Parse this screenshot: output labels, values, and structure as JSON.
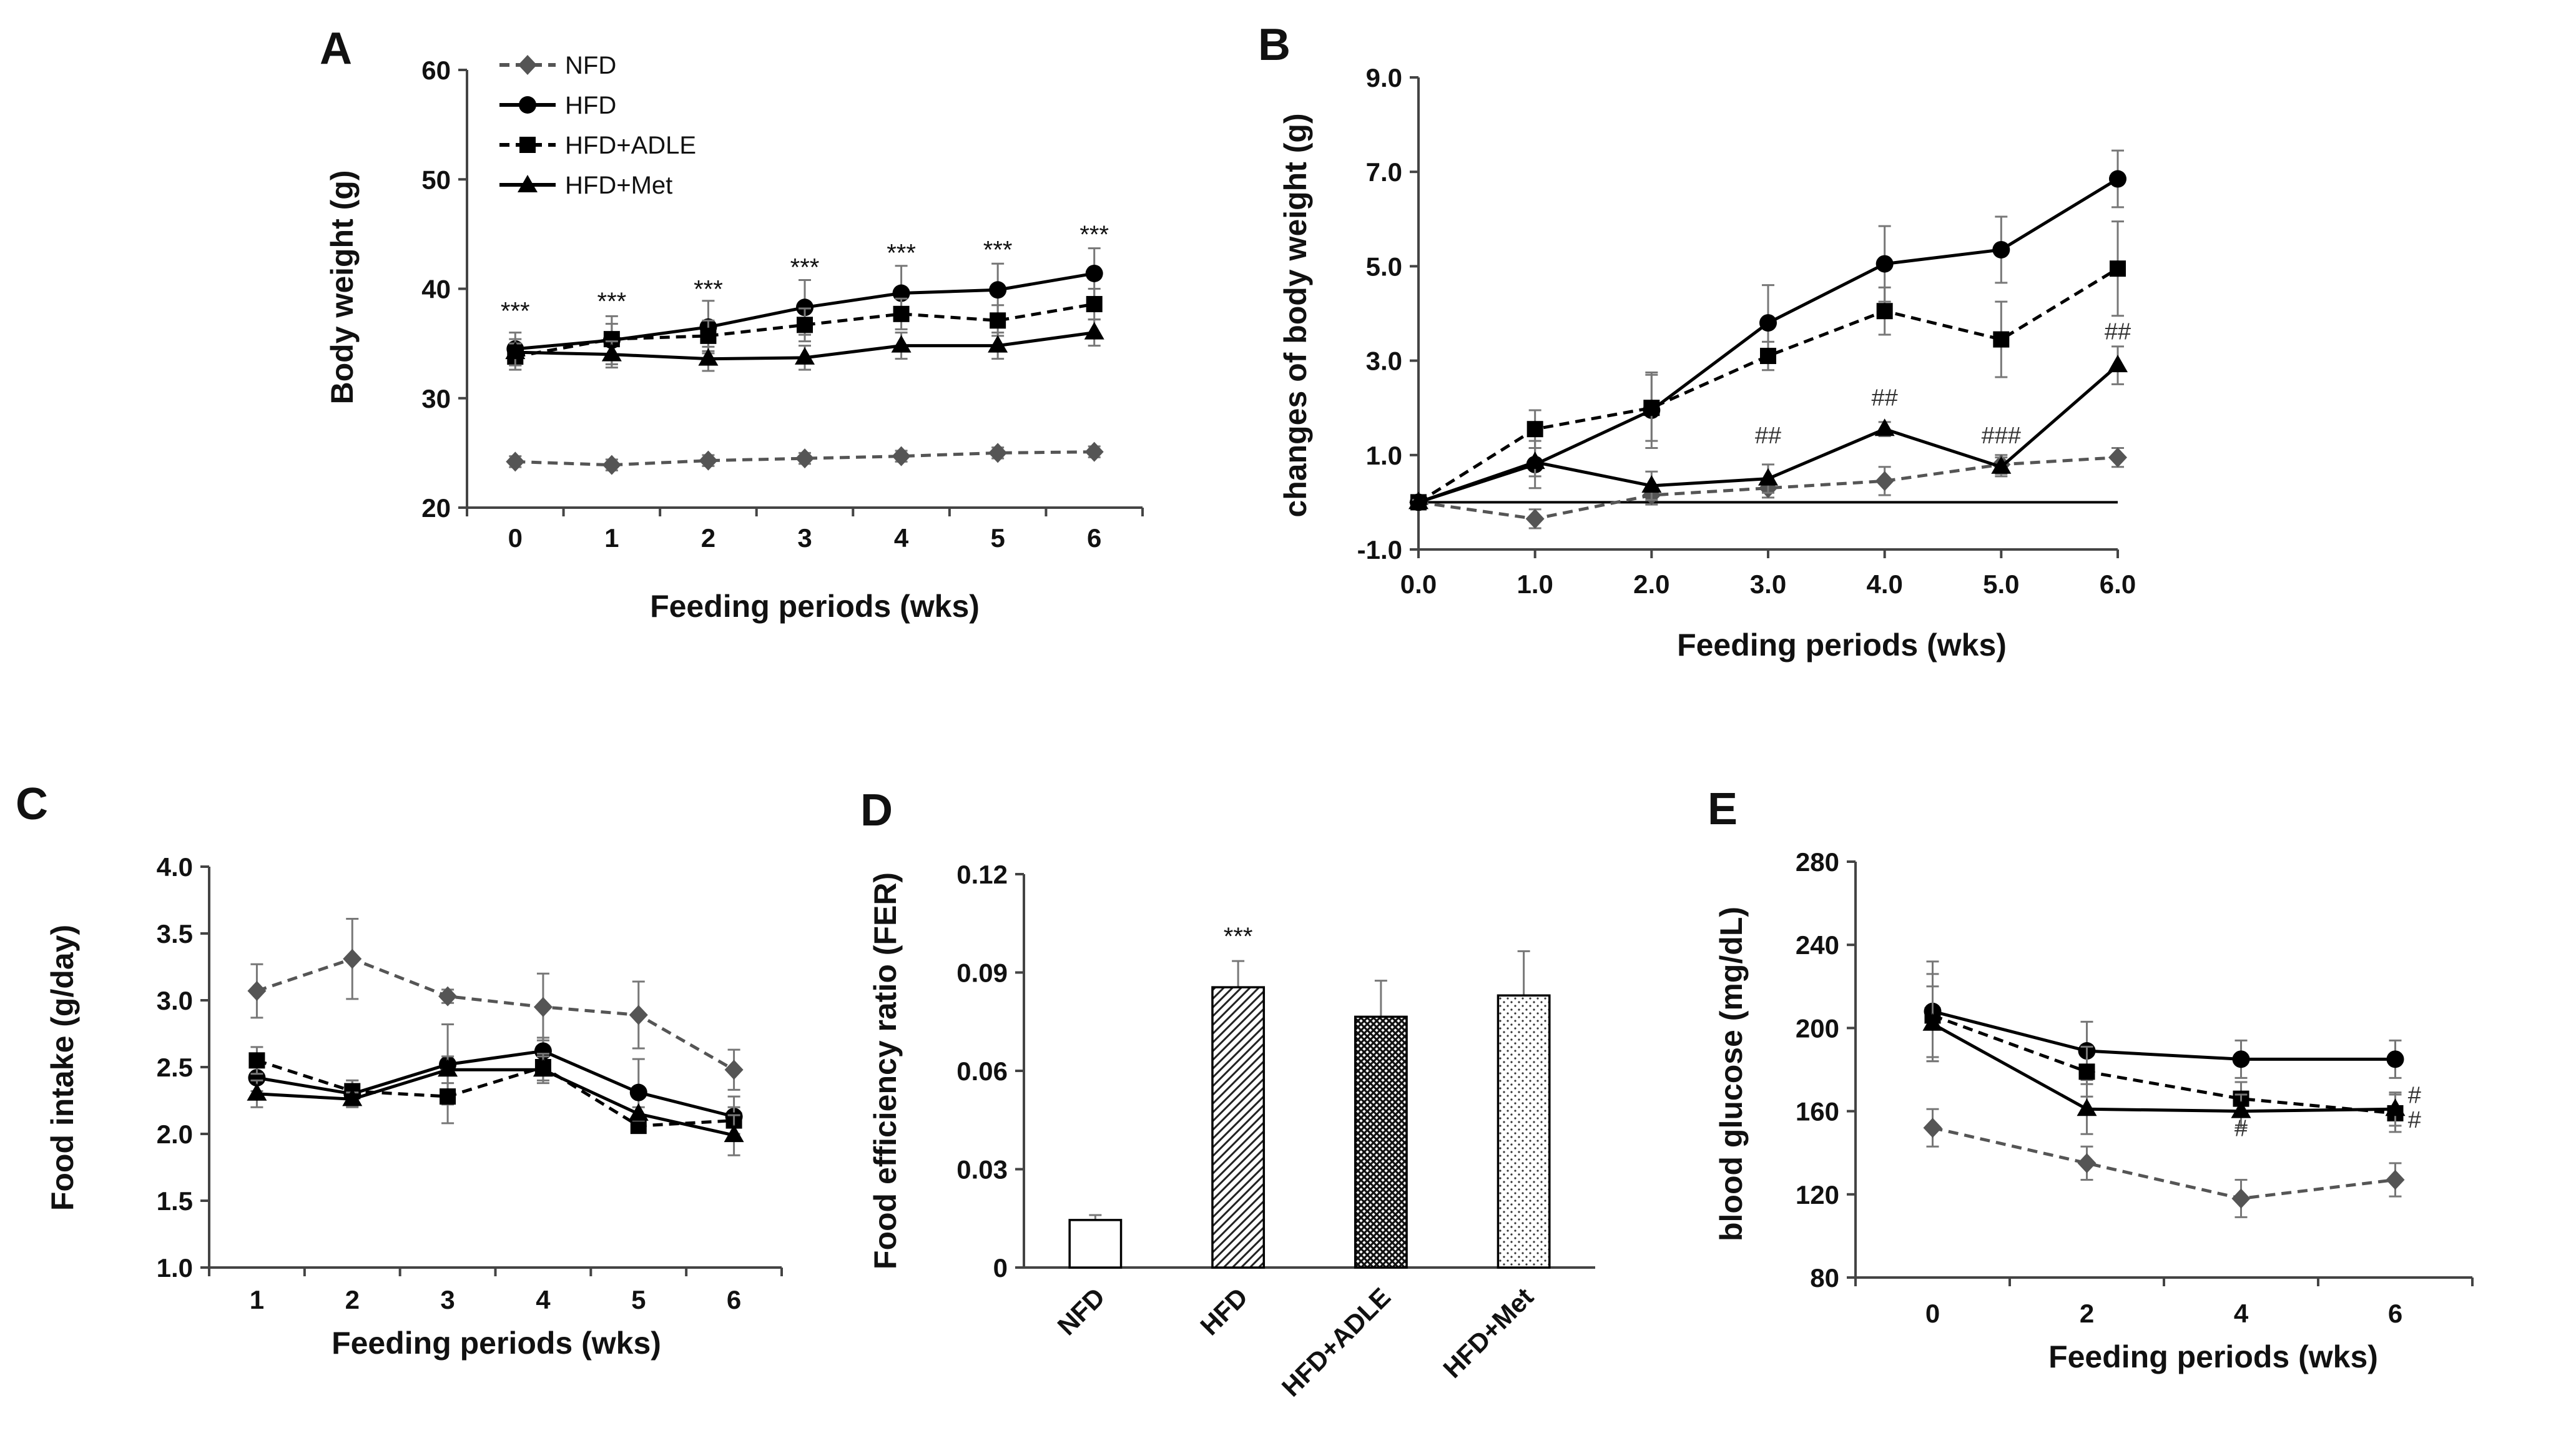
{
  "figure": {
    "colors": {
      "black": "#000000",
      "gray": "#555555",
      "errorbar": "#777777"
    },
    "legend": [
      {
        "name": "NFD",
        "marker": "diamond",
        "dash": "dashed",
        "color": "#555555"
      },
      {
        "name": "HFD",
        "marker": "circle",
        "dash": "solid",
        "color": "#000000"
      },
      {
        "name": "HFD+ADLE",
        "marker": "square",
        "dash": "dashed",
        "color": "#000000"
      },
      {
        "name": "HFD+Met",
        "marker": "triangle",
        "dash": "solid",
        "color": "#000000"
      }
    ]
  },
  "chart_data": [
    {
      "id": "A",
      "panel_label": "A",
      "type": "line",
      "xlabel": "Feeding periods (wks)",
      "ylabel": "Body weight (g)",
      "x": [
        0,
        1,
        2,
        3,
        4,
        5,
        6
      ],
      "x_tick_labels": [
        "0",
        "1",
        "2",
        "3",
        "4",
        "5",
        "6"
      ],
      "xlim": [
        -0.5,
        6.5
      ],
      "ylim": [
        20,
        60
      ],
      "y_ticks": [
        20,
        30,
        40,
        50,
        60
      ],
      "y_tick_labels": [
        "20",
        "30",
        "40",
        "50",
        "60"
      ],
      "legend_position": "top-left",
      "series": [
        {
          "name": "NFD",
          "values": [
            24.2,
            23.9,
            24.3,
            24.5,
            24.7,
            25.0,
            25.1
          ],
          "errors": [
            0.5,
            0.5,
            0.5,
            0.5,
            0.5,
            0.5,
            0.5
          ]
        },
        {
          "name": "HFD",
          "values": [
            34.5,
            35.3,
            36.5,
            38.3,
            39.6,
            39.9,
            41.4
          ],
          "errors": [
            1.5,
            2.2,
            2.4,
            2.5,
            2.5,
            2.4,
            2.3
          ]
        },
        {
          "name": "HFD+ADLE",
          "values": [
            33.8,
            35.4,
            35.7,
            36.7,
            37.7,
            37.1,
            38.6
          ],
          "errors": [
            1.2,
            1.4,
            1.4,
            1.5,
            1.4,
            1.4,
            1.4
          ]
        },
        {
          "name": "HFD+Met",
          "values": [
            34.2,
            34.0,
            33.6,
            33.7,
            34.8,
            34.8,
            36.0
          ],
          "errors": [
            1.2,
            1.2,
            1.1,
            1.1,
            1.2,
            1.2,
            1.2
          ]
        }
      ],
      "annotations": [
        {
          "text": "***",
          "x": 0,
          "y": 37.2
        },
        {
          "text": "***",
          "x": 1,
          "y": 38.1
        },
        {
          "text": "***",
          "x": 2,
          "y": 39.2
        },
        {
          "text": "***",
          "x": 3,
          "y": 41.2
        },
        {
          "text": "***",
          "x": 4,
          "y": 42.5
        },
        {
          "text": "***",
          "x": 5,
          "y": 42.8
        },
        {
          "text": "***",
          "x": 6,
          "y": 44.2
        }
      ]
    },
    {
      "id": "B",
      "panel_label": "B",
      "type": "line",
      "xlabel": "Feeding periods (wks)",
      "ylabel": "changes of body weight (g)",
      "x": [
        0,
        1,
        2,
        3,
        4,
        5,
        6
      ],
      "x_tick_labels": [
        "0.0",
        "1.0",
        "2.0",
        "3.0",
        "4.0",
        "5.0",
        "6.0"
      ],
      "xlim": [
        0,
        6
      ],
      "ylim": [
        -1,
        9
      ],
      "y_ticks": [
        -1,
        1,
        3,
        5,
        7,
        9
      ],
      "y_tick_labels": [
        "-1.0",
        "1.0",
        "3.0",
        "5.0",
        "7.0",
        "9.0"
      ],
      "zero_line": true,
      "series": [
        {
          "name": "NFD",
          "values": [
            0,
            -0.35,
            0.15,
            0.3,
            0.45,
            0.8,
            0.95
          ],
          "errors": [
            0.05,
            0.2,
            0.2,
            0.2,
            0.3,
            0.2,
            0.2
          ]
        },
        {
          "name": "HFD",
          "values": [
            0,
            0.8,
            1.95,
            3.8,
            5.05,
            5.35,
            6.85
          ],
          "errors": [
            0.05,
            0.5,
            0.8,
            0.8,
            0.8,
            0.7,
            0.6
          ]
        },
        {
          "name": "HFD+ADLE",
          "values": [
            0,
            1.55,
            2.0,
            3.1,
            4.05,
            3.45,
            4.95
          ],
          "errors": [
            0.05,
            0.4,
            0.7,
            0.3,
            0.5,
            0.8,
            1.0
          ]
        },
        {
          "name": "HFD+Met",
          "values": [
            0,
            0.85,
            0.35,
            0.5,
            1.55,
            0.75,
            2.9
          ],
          "errors": [
            0.05,
            0.3,
            0.3,
            0.3,
            0.15,
            0.2,
            0.4
          ]
        }
      ],
      "annotations": [
        {
          "text": "##",
          "x": 3,
          "y": 1.25
        },
        {
          "text": "##",
          "x": 4,
          "y": 2.05
        },
        {
          "text": "###",
          "x": 5,
          "y": 1.25
        },
        {
          "text": "##",
          "x": 6,
          "y": 3.45
        }
      ]
    },
    {
      "id": "C",
      "panel_label": "C",
      "type": "line",
      "xlabel": "Feeding periods (wks)",
      "ylabel": "Food intake (g/day)",
      "x": [
        1,
        2,
        3,
        4,
        5,
        6
      ],
      "x_tick_labels": [
        "1",
        "2",
        "3",
        "4",
        "5",
        "6"
      ],
      "xlim": [
        0.5,
        6.5
      ],
      "ylim": [
        1.0,
        4.0
      ],
      "y_ticks": [
        1.0,
        1.5,
        2.0,
        2.5,
        3.0,
        3.5,
        4.0
      ],
      "y_tick_labels": [
        "1.0",
        "1.5",
        "2.0",
        "2.5",
        "3.0",
        "3.5",
        "4.0"
      ],
      "series": [
        {
          "name": "NFD",
          "values": [
            3.07,
            3.31,
            3.03,
            2.95,
            2.89,
            2.48
          ],
          "errors": [
            0.2,
            0.3,
            0.05,
            0.25,
            0.25,
            0.15
          ]
        },
        {
          "name": "HFD",
          "values": [
            2.42,
            2.3,
            2.52,
            2.62,
            2.31,
            2.13
          ],
          "errors": [
            0.1,
            0.1,
            0.3,
            0.1,
            0.25,
            0.15
          ]
        },
        {
          "name": "HFD+ADLE",
          "values": [
            2.55,
            2.32,
            2.28,
            2.5,
            2.06,
            2.1
          ],
          "errors": [
            0.1,
            0.08,
            0.2,
            0.1,
            0.05,
            0.1
          ]
        },
        {
          "name": "HFD+Met",
          "values": [
            2.3,
            2.26,
            2.48,
            2.48,
            2.15,
            1.99
          ],
          "errors": [
            0.1,
            0.05,
            0.1,
            0.1,
            0.05,
            0.15
          ]
        }
      ]
    },
    {
      "id": "D",
      "panel_label": "D",
      "type": "bar",
      "xlabel": "",
      "ylabel": "Food efficiency ratio (FER)",
      "categories": [
        "NFD",
        "HFD",
        "HFD+ADLE",
        "HFD+Met"
      ],
      "values": [
        0.0145,
        0.0855,
        0.0765,
        0.083
      ],
      "errors": [
        0.0015,
        0.008,
        0.011,
        0.0135
      ],
      "fills": [
        "blank",
        "diagonal-hatch",
        "crosshatch",
        "dots"
      ],
      "ylim": [
        0,
        0.12
      ],
      "y_ticks": [
        0,
        0.03,
        0.06,
        0.09,
        0.12
      ],
      "y_tick_labels": [
        "0",
        "0.03",
        "0.06",
        "0.09",
        "0.12"
      ],
      "annotations": [
        {
          "text": "***",
          "category": 1,
          "y": 0.0985
        }
      ]
    },
    {
      "id": "E",
      "panel_label": "E",
      "type": "line",
      "xlabel": "Feeding periods (wks)",
      "ylabel": "blood glucose (mg/dL)",
      "x": [
        0,
        2,
        4,
        6
      ],
      "x_tick_labels": [
        "0",
        "2",
        "4",
        "6"
      ],
      "xlim": [
        -1,
        7
      ],
      "ylim": [
        80,
        280
      ],
      "y_ticks": [
        80,
        120,
        160,
        200,
        240,
        280
      ],
      "y_tick_labels": [
        "80",
        "120",
        "160",
        "200",
        "240",
        "280"
      ],
      "series": [
        {
          "name": "NFD",
          "values": [
            152,
            135,
            118,
            127
          ],
          "errors": [
            9,
            8,
            9,
            8
          ]
        },
        {
          "name": "HFD",
          "values": [
            208,
            189,
            185,
            185
          ],
          "errors": [
            24,
            14,
            9,
            9
          ]
        },
        {
          "name": "HFD+ADLE",
          "values": [
            206,
            179,
            166,
            159
          ],
          "errors": [
            20,
            12,
            8,
            9
          ]
        },
        {
          "name": "HFD+Met",
          "values": [
            202,
            161,
            160,
            161
          ],
          "errors": [
            18,
            12,
            8,
            8
          ]
        }
      ],
      "annotations": [
        {
          "text": "#",
          "x": 4,
          "y": 148
        },
        {
          "text": "#",
          "x": 6.25,
          "y": 164
        },
        {
          "text": "#",
          "x": 6.25,
          "y": 152
        }
      ]
    }
  ]
}
